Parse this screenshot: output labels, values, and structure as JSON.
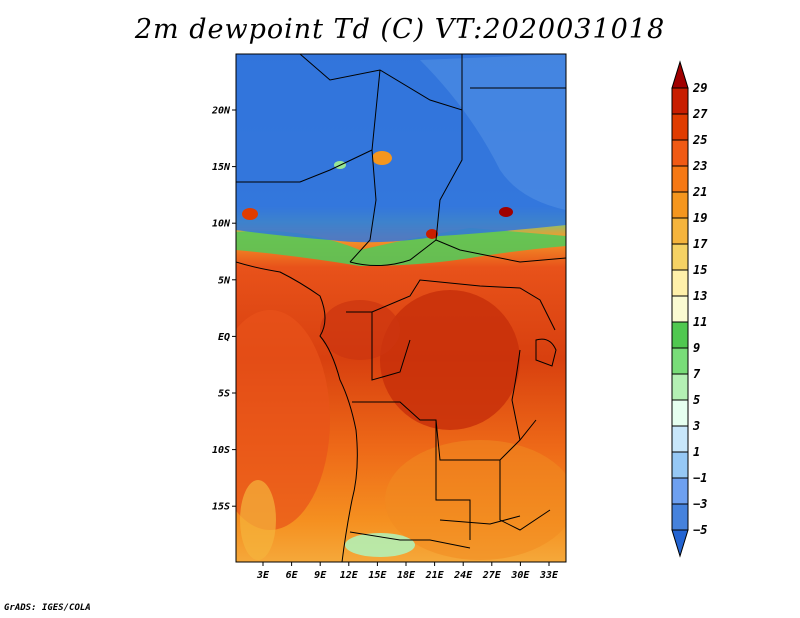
{
  "title": "2m dewpoint Td (C) VT:2020031018",
  "credit": "GrADS: IGES/COLA",
  "map": {
    "x_ticks": [
      "3E",
      "6E",
      "9E",
      "12E",
      "15E",
      "18E",
      "21E",
      "24E",
      "27E",
      "30E",
      "33E"
    ],
    "y_ticks": [
      "20N",
      "15N",
      "10N",
      "5N",
      "EQ",
      "5S",
      "10S",
      "15S"
    ],
    "lon_range": [
      0,
      35
    ],
    "lat_range": [
      -20,
      25
    ]
  },
  "colorbar": {
    "labels": [
      "29",
      "27",
      "25",
      "23",
      "21",
      "19",
      "17",
      "15",
      "13",
      "11",
      "9",
      "7",
      "5",
      "3",
      "1",
      "−1",
      "−3",
      "−5"
    ],
    "colors": [
      "#a00000",
      "#c81e00",
      "#e03c00",
      "#f05a14",
      "#f57814",
      "#f5961e",
      "#f5b43c",
      "#f5d264",
      "#fff0aa",
      "#fafad2",
      "#50c850",
      "#78dc78",
      "#b4f0b4",
      "#e6fff0",
      "#c8e6fa",
      "#96c8f5",
      "#6ea0f0",
      "#4682dc",
      "#2364d2"
    ]
  }
}
